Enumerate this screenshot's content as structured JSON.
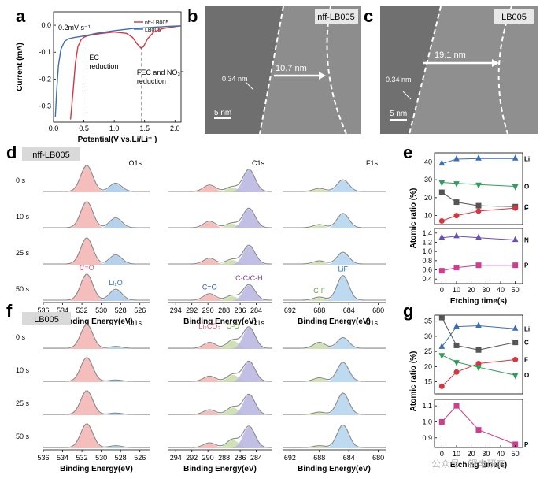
{
  "panels": {
    "a": "a",
    "b": "b",
    "c": "c",
    "d": "d",
    "e": "e",
    "f": "f",
    "g": "g"
  },
  "chart_data": [
    {
      "id": "a",
      "type": "line",
      "title": "",
      "rate_label": "0.2mV s⁻¹",
      "xlabel": "Potential(V vs.Li/Li⁺ )",
      "ylabel": "Current (mA)",
      "xlim": [
        0,
        2.1
      ],
      "ylim": [
        -0.36,
        0.05
      ],
      "xticks": [
        "0.0",
        "0.5",
        "1.0",
        "1.5",
        "2.0"
      ],
      "yticks": [
        "0.0",
        "-0.1",
        "-0.2",
        "-0.3"
      ],
      "annotations": [
        "EC\nreduction",
        "FEC and NO₃⁻\nreduction"
      ],
      "annotation_x": [
        0.55,
        1.45
      ],
      "series": [
        {
          "name": "nff-LB005",
          "color": "#d9343f",
          "x": [
            0.28,
            0.32,
            0.36,
            0.4,
            0.45,
            0.5,
            0.55,
            0.65,
            0.8,
            1.0,
            1.2,
            1.3,
            1.38,
            1.44,
            1.48,
            1.55,
            1.65,
            1.8,
            2.0,
            2.1
          ],
          "y": [
            -0.35,
            -0.25,
            -0.14,
            -0.08,
            -0.055,
            -0.045,
            -0.04,
            -0.035,
            -0.03,
            -0.025,
            -0.03,
            -0.045,
            -0.07,
            -0.085,
            -0.08,
            -0.05,
            -0.025,
            -0.012,
            -0.005,
            -0.002
          ]
        },
        {
          "name": "LB005",
          "color": "#3a6fb5",
          "x": [
            0.03,
            0.05,
            0.08,
            0.12,
            0.18,
            0.25,
            0.35,
            0.5,
            0.7,
            1.0,
            1.3,
            1.6,
            1.9,
            2.1
          ],
          "y": [
            -0.34,
            -0.25,
            -0.15,
            -0.09,
            -0.06,
            -0.05,
            -0.045,
            -0.04,
            -0.03,
            -0.02,
            -0.012,
            -0.008,
            -0.004,
            -0.002
          ]
        }
      ]
    },
    {
      "id": "d",
      "type": "area",
      "sample_label": "nff-LB005",
      "xlabel": "Binding Energy(eV)",
      "depth_labels": [
        "0 s",
        "10 s",
        "25 s",
        "50 s"
      ],
      "spectra": [
        {
          "element": "O1s",
          "xticks": [
            "536",
            "534",
            "532",
            "530",
            "528",
            "526"
          ],
          "xlim": [
            536,
            525
          ],
          "peaks": [
            {
              "name": "C=O",
              "color": "#f2b3b1",
              "label_color": "#e0547a",
              "center": 531.5
            },
            {
              "name": "Li₂O",
              "color": "#a9c9e8",
              "label_color": "#2a79b8",
              "center": 528.5
            }
          ],
          "heights": [
            [
              1.0,
              0.32
            ],
            [
              1.0,
              0.38
            ],
            [
              1.0,
              0.35
            ],
            [
              1.0,
              0.42
            ]
          ]
        },
        {
          "element": "C1s",
          "xticks": [
            "294",
            "292",
            "290",
            "288",
            "286",
            "284"
          ],
          "xlim": [
            295,
            282
          ],
          "peaks": [
            {
              "name": "C=O",
              "color": "#f2b3b1",
              "label_color": "#2a5bb0",
              "center": 289.8
            },
            {
              "name": "C-O",
              "color": "#c8dca8",
              "label_color": "#6aa03c",
              "center": 287.0
            },
            {
              "name": "C-C/C-H",
              "color": "#b7b4e0",
              "label_color": "#7a3fa0",
              "center": 284.9
            }
          ],
          "heights": [
            [
              0.25,
              0.18,
              0.85
            ],
            [
              0.25,
              0.18,
              0.75
            ],
            [
              0.22,
              0.18,
              0.72
            ],
            [
              0.25,
              0.18,
              0.6
            ]
          ]
        },
        {
          "element": "F1s",
          "xticks": [
            "692",
            "688",
            "684",
            "680"
          ],
          "xlim": [
            693,
            679
          ],
          "peaks": [
            {
              "name": "C-F",
              "color": "#c8dca8",
              "label_color": "#6aa03c",
              "center": 688.0
            },
            {
              "name": "LiF",
              "color": "#b3d4ee",
              "label_color": "#2a79b8",
              "center": 684.8
            }
          ],
          "heights": [
            [
              0.12,
              0.45
            ],
            [
              0.12,
              0.55
            ],
            [
              0.12,
              0.45
            ],
            [
              0.12,
              0.95
            ]
          ]
        }
      ],
      "peak_labels": {
        "O1s": [
          "C=O",
          "Li₂O"
        ],
        "C1s": [
          "C=O",
          "C-C/C-H"
        ],
        "F1s": [
          "C-F",
          "LiF"
        ]
      }
    },
    {
      "id": "e",
      "type": "line",
      "xlabel": "Etching time(s)",
      "ylabel": "Atomic ratio (%)",
      "x": [
        0,
        10,
        25,
        50
      ],
      "xticks": [
        "0",
        "10",
        "20",
        "30",
        "40",
        "50"
      ],
      "top": {
        "ylim": [
          5,
          45
        ],
        "yticks": [
          "10",
          "20",
          "30",
          "40"
        ],
        "series": [
          {
            "name": "Li",
            "color": "#3a6fb5",
            "marker": "triangle-up",
            "values": [
              39,
              41.5,
              41.8,
              41.8
            ]
          },
          {
            "name": "O",
            "color": "#2e9e5a",
            "marker": "triangle-down",
            "values": [
              28.5,
              28,
              27.3,
              26.3
            ]
          },
          {
            "name": "C",
            "color": "#555555",
            "marker": "square",
            "values": [
              23,
              17.5,
              15.5,
              15
            ]
          },
          {
            "name": "F",
            "color": "#d9343f",
            "marker": "circle",
            "values": [
              7,
              10,
              12.5,
              14.2
            ]
          }
        ]
      },
      "bottom": {
        "ylim": [
          0.3,
          1.5
        ],
        "yticks": [
          "0.4",
          "0.6",
          "0.8",
          "1.0",
          "1.2",
          "1.4"
        ],
        "series": [
          {
            "name": "N",
            "color": "#6a4fb5",
            "marker": "triangle-up",
            "values": [
              1.3,
              1.33,
              1.3,
              1.25
            ]
          },
          {
            "name": "P",
            "color": "#d43a8f",
            "marker": "square",
            "values": [
              0.58,
              0.65,
              0.7,
              0.7
            ]
          }
        ]
      }
    },
    {
      "id": "f",
      "type": "area",
      "sample_label": "LB005",
      "xlabel": "Binding Energy(eV)",
      "depth_labels": [
        "0 s",
        "10 s",
        "25 s",
        "50 s"
      ],
      "spectra": [
        {
          "element": "O1s",
          "xticks": [
            "536",
            "534",
            "532",
            "530",
            "528",
            "526"
          ],
          "xlim": [
            536,
            525
          ],
          "peaks": [
            {
              "name": "C=O",
              "color": "#f2b3b1",
              "label_color": "#e0547a",
              "center": 531.5
            },
            {
              "name": "Li₂O",
              "color": "#a9c9e8",
              "label_color": "#2a79b8",
              "center": 528.5
            }
          ],
          "heights": [
            [
              1.0,
              0.08
            ],
            [
              1.0,
              0.06
            ],
            [
              1.0,
              0.06
            ],
            [
              1.0,
              0.08
            ]
          ]
        },
        {
          "element": "C1s",
          "xticks": [
            "294",
            "292",
            "290",
            "288",
            "286",
            "284"
          ],
          "xlim": [
            295,
            282
          ],
          "peaks": [
            {
              "name": "Li₂CO₃",
              "color": "#f2b3b1",
              "label_color": "#e0547a",
              "center": 289.8
            },
            {
              "name": "C-O",
              "color": "#c8dca8",
              "label_color": "#6aa03c",
              "center": 286.9
            },
            {
              "name": "C-C/C-H",
              "color": "#b7b4e0",
              "label_color": "#7a3fa0",
              "center": 284.9
            }
          ],
          "heights": [
            [
              0.25,
              0.35,
              0.9
            ],
            [
              0.22,
              0.3,
              0.85
            ],
            [
              0.2,
              0.32,
              0.85
            ],
            [
              0.2,
              0.35,
              0.9
            ]
          ]
        },
        {
          "element": "F1s",
          "xticks": [
            "692",
            "688",
            "684",
            "680"
          ],
          "xlim": [
            693,
            679
          ],
          "peaks": [
            {
              "name": "C-F",
              "color": "#c8dca8",
              "label_color": "#6aa03c",
              "center": 688.0
            },
            {
              "name": "LiF",
              "color": "#b3d4ee",
              "label_color": "#2a79b8",
              "center": 684.8
            }
          ],
          "heights": [
            [
              0.25,
              0.45
            ],
            [
              0.15,
              0.8
            ],
            [
              0.1,
              0.9
            ],
            [
              0.08,
              0.95
            ]
          ]
        }
      ],
      "peak_labels": {
        "C1s": [
          "Li₂CO₃",
          "C-O"
        ]
      }
    },
    {
      "id": "g",
      "type": "line",
      "xlabel": "Etching time(s)",
      "ylabel": "Atomic ratio (%)",
      "x": [
        0,
        10,
        25,
        50
      ],
      "xticks": [
        "0",
        "10",
        "20",
        "30",
        "40",
        "50"
      ],
      "top": {
        "ylim": [
          11,
          37
        ],
        "yticks": [
          "15",
          "20",
          "25",
          "30",
          "35"
        ],
        "series": [
          {
            "name": "Li",
            "color": "#3a6fb5",
            "marker": "triangle-up",
            "values": [
              26.5,
              33.2,
              33.5,
              32.5
            ]
          },
          {
            "name": "C",
            "color": "#555555",
            "marker": "square",
            "values": [
              36.2,
              27,
              25.5,
              28
            ]
          },
          {
            "name": "F",
            "color": "#d9343f",
            "marker": "circle",
            "values": [
              13.5,
              18.2,
              21,
              22.3
            ]
          },
          {
            "name": "O",
            "color": "#2e9e5a",
            "marker": "triangle-down",
            "values": [
              23.8,
              21.5,
              19.8,
              17.2
            ]
          }
        ]
      },
      "bottom": {
        "ylim": [
          0.84,
          1.14
        ],
        "yticks": [
          "0.9",
          "1.0",
          "1.1"
        ],
        "series": [
          {
            "name": "P",
            "color": "#d43a8f",
            "marker": "square",
            "values": [
              1.0,
              1.1,
              0.95,
              0.86
            ]
          }
        ]
      }
    }
  ],
  "tem": [
    {
      "id": "b",
      "sample": "nff-LB005",
      "spacing": "0.34 nm",
      "thickness": "10.7 nm",
      "scalebar": "5 nm"
    },
    {
      "id": "c",
      "sample": "LB005",
      "spacing": "0.34 nm",
      "thickness": "19.1 nm",
      "scalebar": "5 nm"
    }
  ],
  "watermark": "公众号 · 锂电研究"
}
